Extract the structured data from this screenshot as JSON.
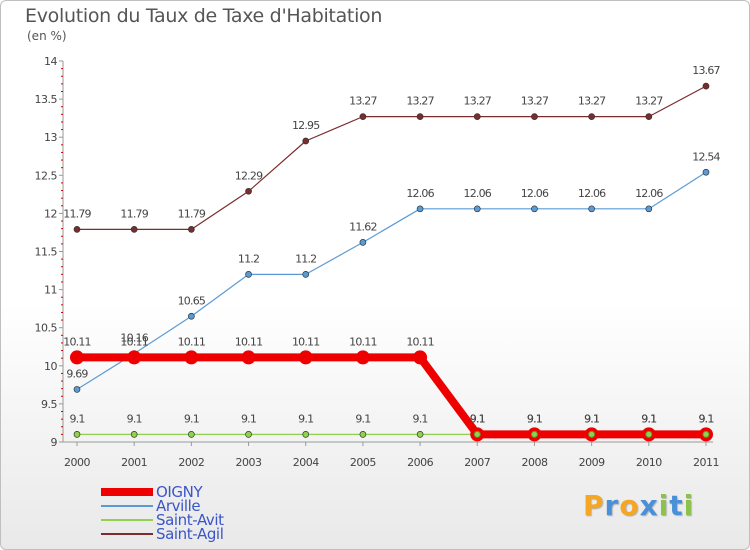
{
  "title": "Evolution du Taux de Taxe d'Habitation",
  "subtitle": "(en %)",
  "logo": {
    "letters": [
      "P",
      "r",
      "o",
      "x",
      "i",
      "t",
      "i"
    ],
    "colors": [
      "#f5a623",
      "#4a90d9",
      "#f5a623",
      "#4a90d9",
      "#8bc34a",
      "#4a90d9",
      "#8bc34a"
    ]
  },
  "chart_data": {
    "type": "line",
    "x": [
      "2000",
      "2001",
      "2002",
      "2003",
      "2004",
      "2005",
      "2006",
      "2007",
      "2008",
      "2009",
      "2010",
      "2011"
    ],
    "ylim": [
      9,
      14
    ],
    "yticks": [
      "9",
      "9.5",
      "10",
      "10.5",
      "11",
      "11.5",
      "12",
      "12.5",
      "13",
      "13.5",
      "14"
    ],
    "series": [
      {
        "name": "Saint-Agil",
        "color": "#7b2c2c",
        "width": 1.2,
        "values": [
          11.79,
          11.79,
          11.79,
          12.29,
          12.95,
          13.27,
          13.27,
          13.27,
          13.27,
          13.27,
          13.27,
          13.67
        ],
        "labels": [
          "11.79",
          "11.79",
          "11.79",
          "12.29",
          "12.95",
          "13.27",
          "13.27",
          "13.27",
          "13.27",
          "13.27",
          "13.27",
          "13.67"
        ]
      },
      {
        "name": "Arville",
        "color": "#5b9bd5",
        "width": 1.2,
        "values": [
          9.69,
          10.16,
          10.65,
          11.2,
          11.2,
          11.62,
          12.06,
          12.06,
          12.06,
          12.06,
          12.06,
          12.54
        ],
        "labels": [
          "9.69",
          "10.16",
          "10.65",
          "11.2",
          "11.2",
          "11.62",
          "12.06",
          "12.06",
          "12.06",
          "12.06",
          "12.06",
          "12.54"
        ]
      },
      {
        "name": "Saint-Avit",
        "color": "#92d050",
        "width": 1.2,
        "values": [
          9.1,
          9.1,
          9.1,
          9.1,
          9.1,
          9.1,
          9.1,
          9.1,
          9.1,
          9.1,
          9.1,
          9.1
        ],
        "labels": [
          "9.1",
          "9.1",
          "9.1",
          "9.1",
          "9.1",
          "9.1",
          "9.1",
          "9.1",
          "9.1",
          "9.1",
          "9.1",
          "9.1"
        ]
      },
      {
        "name": "OIGNY",
        "color": "#ee0000",
        "width": 8,
        "values": [
          10.11,
          10.11,
          10.11,
          10.11,
          10.11,
          10.11,
          10.11,
          9.1,
          9.1,
          9.1,
          9.1,
          9.1
        ],
        "labels": [
          "10.11",
          "10.11",
          "10.11",
          "10.11",
          "10.11",
          "10.11",
          "10.11",
          "9.1",
          "9.1",
          "9.1",
          "9.1",
          "9.1"
        ]
      }
    ],
    "legend": [
      "OIGNY",
      "Arville",
      "Saint-Avit",
      "Saint-Agil"
    ],
    "legend_placement": "bottom-left",
    "grid": false
  }
}
